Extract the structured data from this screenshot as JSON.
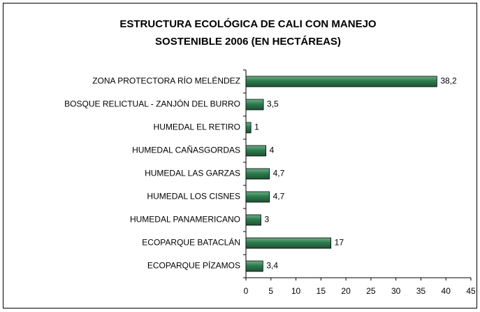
{
  "chart_data": {
    "type": "bar",
    "orientation": "horizontal",
    "title": [
      "ESTRUCTURA ECOLÓGICA DE CALI CON MANEJO",
      "SOSTENIBLE 2006 (EN HECTÁREAS)"
    ],
    "categories": [
      "ZONA PROTECTORA RÍO MELÉNDEZ",
      "BOSQUE RELICTUAL - ZANJÓN DEL BURRO",
      "HUMEDAL EL RETIRO",
      "HUMEDAL CAÑASGORDAS",
      "HUMEDAL LAS GARZAS",
      "HUMEDAL LOS CISNES",
      "HUMEDAL PANAMERICANO",
      "ECOPARQUE BATACLÁN",
      "ECOPARQUE PÍZAMOS"
    ],
    "values": [
      38.2,
      3.5,
      1,
      4,
      4.7,
      4.7,
      3,
      17,
      3.4
    ],
    "value_labels": [
      "38,2",
      "3,5",
      "1",
      "4",
      "4,7",
      "4,7",
      "3",
      "17",
      "3,4"
    ],
    "color": "#2e7b4e",
    "xlim": [
      0,
      45
    ],
    "xticks": [
      0,
      5,
      10,
      15,
      20,
      25,
      30,
      35,
      40,
      45
    ],
    "grid": false
  }
}
